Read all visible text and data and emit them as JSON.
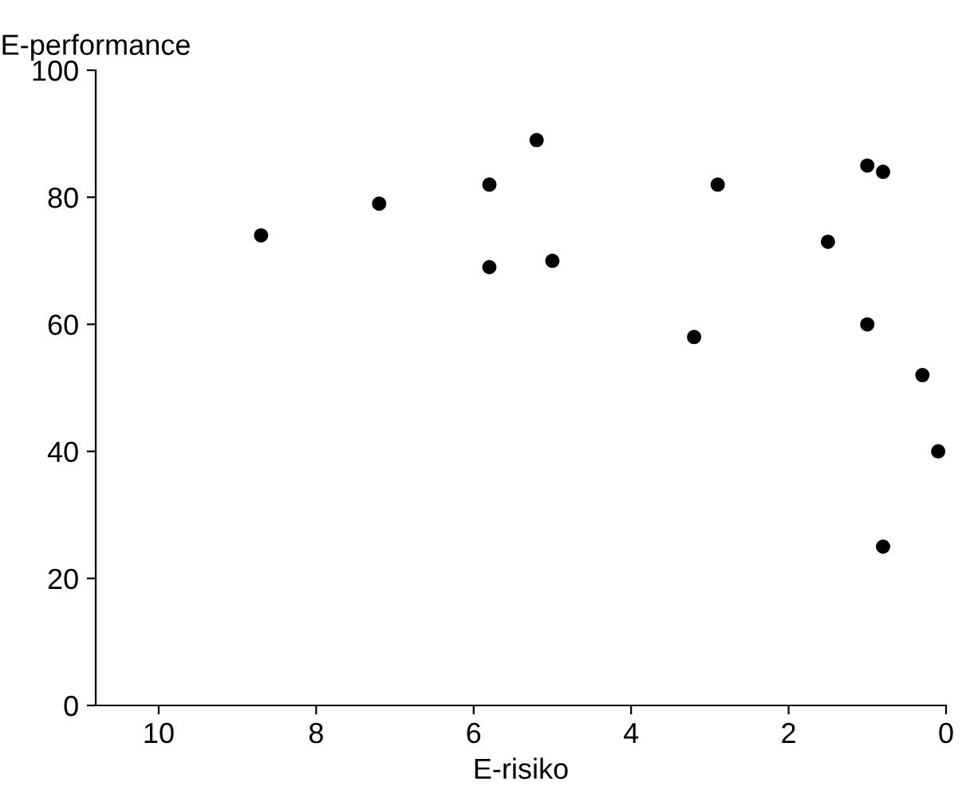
{
  "chart_data": {
    "type": "scatter",
    "xlabel": "E-risiko",
    "ylabel": "E-performance",
    "x": [
      8.7,
      7.2,
      5.8,
      5.8,
      5.2,
      5.0,
      3.2,
      2.9,
      1.5,
      1.0,
      0.8,
      1.0,
      0.3,
      0.1,
      0.8
    ],
    "values": [
      74,
      79,
      82,
      69,
      89,
      70,
      58,
      82,
      73,
      85,
      84,
      60,
      52,
      40,
      25
    ],
    "color": "#000000",
    "marker": "circle",
    "xlim": [
      10.8,
      0
    ],
    "xticks": [
      10,
      8,
      6,
      4,
      2,
      0
    ],
    "ylim": [
      0,
      100
    ],
    "yticks": [
      0,
      20,
      40,
      60,
      80,
      100
    ],
    "grid": false,
    "legend": false
  }
}
